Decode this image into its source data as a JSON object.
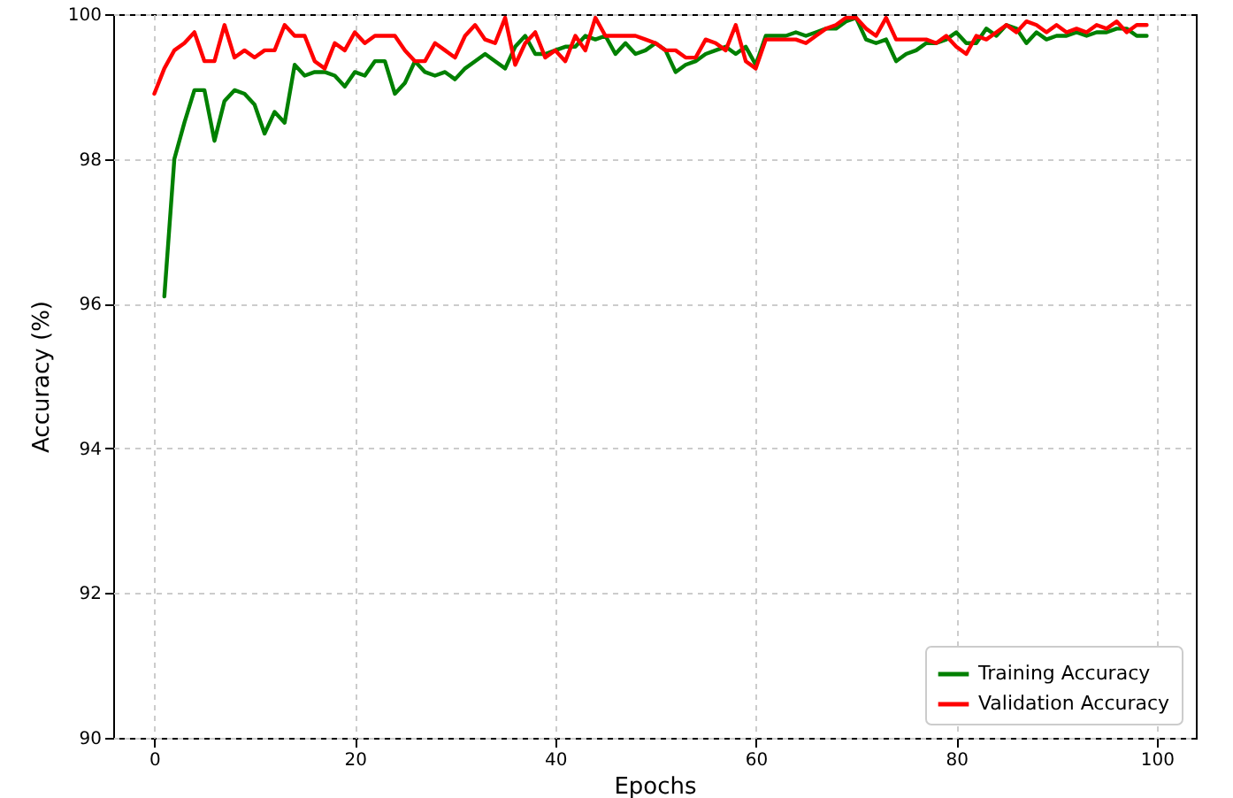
{
  "chart_data": {
    "type": "line",
    "xlabel": "Epochs",
    "ylabel": "Accuracy (%)",
    "x": [
      0,
      1,
      2,
      3,
      4,
      5,
      6,
      7,
      8,
      9,
      10,
      11,
      12,
      13,
      14,
      15,
      16,
      17,
      18,
      19,
      20,
      21,
      22,
      23,
      24,
      25,
      26,
      27,
      28,
      29,
      30,
      31,
      32,
      33,
      34,
      35,
      36,
      37,
      38,
      39,
      40,
      41,
      42,
      43,
      44,
      45,
      46,
      47,
      48,
      49,
      50,
      51,
      52,
      53,
      54,
      55,
      56,
      57,
      58,
      59,
      60,
      61,
      62,
      63,
      64,
      65,
      66,
      67,
      68,
      69,
      70,
      71,
      72,
      73,
      74,
      75,
      76,
      77,
      78,
      79,
      80,
      81,
      82,
      83,
      84,
      85,
      86,
      87,
      88,
      89,
      90,
      91,
      92,
      93,
      94,
      95,
      96,
      97,
      98,
      99
    ],
    "series": [
      {
        "name": "Training Accuracy",
        "color": "#008000",
        "values": [
          null,
          96.1,
          98.0,
          98.5,
          98.95,
          98.95,
          98.25,
          98.8,
          98.95,
          98.9,
          98.75,
          98.35,
          98.65,
          98.5,
          99.3,
          99.15,
          99.2,
          99.2,
          99.15,
          99.0,
          99.2,
          99.15,
          99.35,
          99.35,
          98.9,
          99.05,
          99.35,
          99.2,
          99.15,
          99.2,
          99.1,
          99.25,
          99.35,
          99.45,
          99.35,
          99.25,
          99.55,
          99.7,
          99.45,
          99.45,
          99.5,
          99.55,
          99.55,
          99.7,
          99.65,
          99.7,
          99.45,
          99.6,
          99.45,
          99.5,
          99.6,
          99.5,
          99.2,
          99.3,
          99.35,
          99.45,
          99.5,
          99.55,
          99.45,
          99.55,
          99.3,
          99.7,
          99.7,
          99.7,
          99.75,
          99.7,
          99.75,
          99.8,
          99.8,
          99.9,
          99.95,
          99.65,
          99.6,
          99.65,
          99.35,
          99.45,
          99.5,
          99.6,
          99.6,
          99.65,
          99.75,
          99.6,
          99.6,
          99.8,
          99.7,
          99.85,
          99.8,
          99.6,
          99.75,
          99.65,
          99.7,
          99.7,
          99.75,
          99.7,
          99.75,
          99.75,
          99.8,
          99.8,
          99.7,
          99.7
        ]
      },
      {
        "name": "Validation Accuracy",
        "color": "#ff0000",
        "values": [
          98.9,
          99.25,
          99.5,
          99.6,
          99.75,
          99.35,
          99.35,
          99.85,
          99.4,
          99.5,
          99.4,
          99.5,
          99.5,
          99.85,
          99.7,
          99.7,
          99.35,
          99.25,
          99.6,
          99.5,
          99.75,
          99.6,
          99.7,
          99.7,
          99.7,
          99.5,
          99.35,
          99.35,
          99.6,
          99.5,
          99.4,
          99.7,
          99.85,
          99.65,
          99.6,
          99.95,
          99.3,
          99.6,
          99.75,
          99.4,
          99.5,
          99.35,
          99.7,
          99.5,
          99.95,
          99.7,
          99.7,
          99.7,
          99.7,
          99.65,
          99.6,
          99.5,
          99.5,
          99.4,
          99.4,
          99.65,
          99.6,
          99.5,
          99.85,
          99.35,
          99.25,
          99.65,
          99.65,
          99.65,
          99.65,
          99.6,
          99.7,
          99.8,
          99.85,
          99.95,
          99.95,
          99.8,
          99.7,
          99.95,
          99.65,
          99.65,
          99.65,
          99.65,
          99.6,
          99.7,
          99.55,
          99.45,
          99.7,
          99.65,
          99.75,
          99.85,
          99.75,
          99.9,
          99.85,
          99.75,
          99.85,
          99.75,
          99.8,
          99.75,
          99.85,
          99.8,
          99.9,
          99.75,
          99.85,
          99.85
        ]
      }
    ],
    "xlim": [
      -4.1,
      103.9
    ],
    "xticks": [
      0,
      20,
      40,
      60,
      80,
      100
    ],
    "ylim": [
      90,
      100
    ],
    "yticks": [
      90,
      92,
      94,
      96,
      98,
      100
    ],
    "grid": true,
    "legend": "bottom right",
    "marker": "none",
    "line_style": "solid"
  }
}
